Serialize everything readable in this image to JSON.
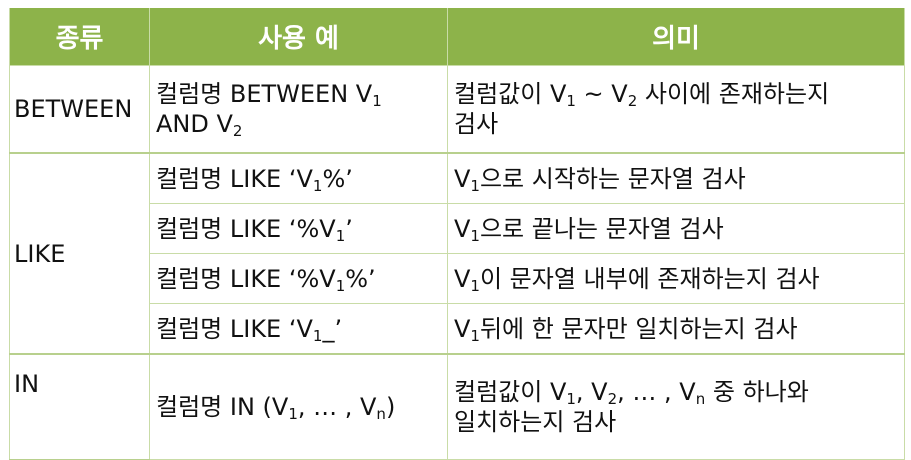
{
  "header": {
    "kind": "종류",
    "usage": "사용 예",
    "meaning": "의미"
  },
  "rows": {
    "between": {
      "kind": "BETWEEN",
      "usage_a": "컬럼명 BETWEEN V",
      "usage_sub1": "1",
      "usage_b": "AND V",
      "usage_sub2": "2",
      "meaning_a": "컬럼값이 V",
      "meaning_sub1": "1",
      "meaning_b": " ~ V",
      "meaning_sub2": "2",
      "meaning_c": " 사이에 존재하는지",
      "meaning_d": "검사"
    },
    "like_kind": "LIKE",
    "like1": {
      "usage_a": "컬럼명 LIKE ‘V",
      "usage_sub": "1",
      "usage_b": "%’",
      "meaning_a": "V",
      "meaning_sub": "1",
      "meaning_b": "으로 시작하는 문자열 검사"
    },
    "like2": {
      "usage_a": "컬럼명 LIKE ‘%V",
      "usage_sub": "1",
      "usage_b": "’",
      "meaning_a": "V",
      "meaning_sub": "1",
      "meaning_b": "으로 끝나는 문자열 검사"
    },
    "like3": {
      "usage_a": "컬럼명 LIKE ‘%V",
      "usage_sub": "1",
      "usage_b": "%’",
      "meaning_a": "V",
      "meaning_sub": "1",
      "meaning_b": "이 문자열 내부에 존재하는지 검사"
    },
    "like4": {
      "usage_a": "컬럼명 LIKE ‘V",
      "usage_sub": "1",
      "usage_b": "_’",
      "meaning_a": "V",
      "meaning_sub": "1",
      "meaning_b": "뒤에 한 문자만 일치하는지 검사"
    },
    "in": {
      "kind": "IN",
      "usage_a": "컬럼명 IN (V",
      "usage_sub1": "1",
      "usage_b": ",  … , V",
      "usage_sub2": "n",
      "usage_c": ")",
      "meaning_a": "컬럼값이 V",
      "meaning_sub1": "1",
      "meaning_b": ", V",
      "meaning_sub2": "2",
      "meaning_c": ", … , V",
      "meaning_sub3": "n",
      "meaning_d": " 중 하나와",
      "meaning_e": "일치하는지 검사"
    }
  },
  "colors": {
    "header_bg": "#8db34a",
    "header_text": "#ffffff",
    "border": "#c9dca7"
  }
}
